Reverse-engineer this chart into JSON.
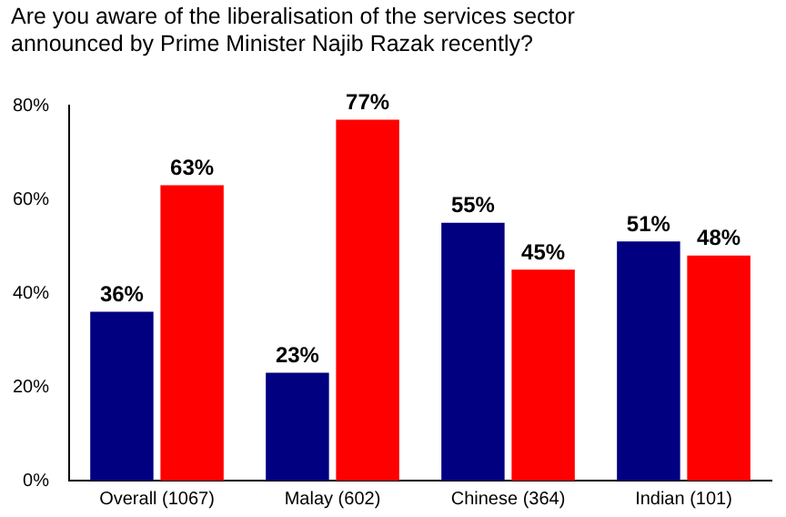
{
  "chart_data": {
    "type": "bar",
    "title": "Are you aware of the liberalisation of the services sector announced by Prime Minister Najib Razak recently?",
    "categories": [
      "Overall (1067)",
      "Malay (602)",
      "Chinese (364)",
      "Indian (101)"
    ],
    "series": [
      {
        "color": "#000080",
        "values": [
          36,
          23,
          55,
          51
        ],
        "value_labels": [
          "36%",
          "23%",
          "55%",
          "51%"
        ]
      },
      {
        "color": "#ff0000",
        "values": [
          63,
          77,
          45,
          48
        ],
        "value_labels": [
          "63%",
          "77%",
          "45%",
          "48%"
        ]
      }
    ],
    "ylim": [
      0,
      80
    ],
    "yticks": [
      {
        "value": 0,
        "label": "0%"
      },
      {
        "value": 20,
        "label": "20%"
      },
      {
        "value": 40,
        "label": "40%"
      },
      {
        "value": 60,
        "label": "60%"
      },
      {
        "value": 80,
        "label": "80%"
      }
    ],
    "grid": false,
    "legend": false
  }
}
